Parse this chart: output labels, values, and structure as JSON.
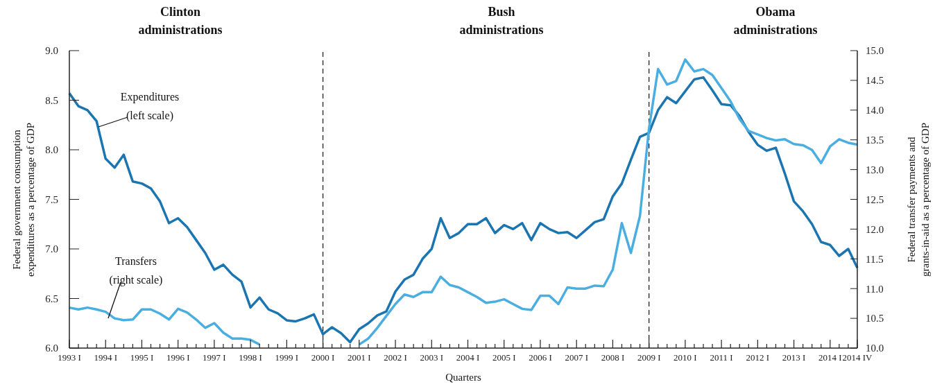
{
  "chart_data": {
    "type": "line",
    "xlabel": "Quarters",
    "ylabel": "Federal government consumption expenditures as a percentage of GDP",
    "y2label": "Federal transfer payments and grants-in-aid as a percentage of GDP",
    "annotations": [
      "Clinton administrations",
      "Bush administrations",
      "Obama administrations"
    ],
    "categories": [
      "1993 I",
      null,
      null,
      null,
      "1994 I",
      null,
      null,
      null,
      "1995 I",
      null,
      null,
      null,
      "1996 I",
      null,
      null,
      null,
      "1997 I",
      null,
      null,
      null,
      "1998 I",
      null,
      null,
      null,
      "1999 I",
      null,
      null,
      null,
      "2000 I",
      null,
      null,
      null,
      "2001 I",
      null,
      null,
      null,
      "2002 I",
      null,
      null,
      null,
      "2003 I",
      null,
      null,
      null,
      "2004 I",
      null,
      null,
      null,
      "2005 I",
      null,
      null,
      null,
      "2006 I",
      null,
      null,
      null,
      "2007 I",
      null,
      null,
      null,
      "2008 I",
      null,
      null,
      null,
      "2009 I",
      null,
      null,
      null,
      "2010 I",
      null,
      null,
      null,
      "2011 I",
      null,
      null,
      null,
      "2012 I",
      null,
      null,
      null,
      "2013 I",
      null,
      null,
      null,
      "2014 I",
      null,
      null,
      "2014 IV"
    ],
    "series": [
      {
        "name": "Expenditures (left scale)",
        "color": "#1b75b0",
        "values": [
          8.57,
          8.44,
          8.4,
          8.29,
          7.91,
          7.82,
          7.95,
          7.68,
          7.66,
          7.61,
          7.48,
          7.26,
          7.31,
          7.22,
          7.09,
          6.96,
          6.79,
          6.84,
          6.74,
          6.67,
          6.41,
          6.51,
          6.39,
          6.35,
          6.28,
          6.27,
          6.3,
          6.34,
          6.14,
          6.21,
          6.15,
          6.06,
          6.19,
          6.25,
          6.33,
          6.37,
          6.57,
          6.69,
          6.74,
          6.9,
          7.0,
          7.31,
          7.11,
          7.16,
          7.25,
          7.25,
          7.31,
          7.16,
          7.24,
          7.2,
          7.26,
          7.09,
          7.26,
          7.2,
          7.16,
          7.17,
          7.11,
          7.19,
          7.27,
          7.3,
          7.53,
          7.66,
          7.9,
          8.13,
          8.17,
          8.4,
          8.53,
          8.47,
          8.59,
          8.71,
          8.73,
          8.6,
          8.46,
          8.45,
          8.34,
          8.18,
          8.05,
          7.99,
          8.02,
          7.76,
          7.48,
          7.38,
          7.25,
          7.07,
          7.04,
          6.93,
          7.0,
          6.81
        ]
      },
      {
        "name": "Transfers (right scale)",
        "color": "#4aaee0",
        "axis": "y2",
        "values": [
          10.68,
          10.65,
          10.68,
          10.65,
          10.61,
          10.5,
          10.47,
          10.48,
          10.65,
          10.65,
          10.58,
          10.48,
          10.66,
          10.6,
          10.48,
          10.34,
          10.42,
          10.26,
          10.16,
          10.16,
          10.14,
          10.06,
          null,
          null,
          null,
          null,
          null,
          null,
          null,
          null,
          null,
          null,
          10.06,
          10.16,
          10.34,
          10.54,
          10.74,
          10.9,
          10.86,
          10.94,
          10.94,
          11.2,
          11.06,
          11.02,
          10.94,
          10.86,
          10.76,
          10.78,
          10.82,
          10.74,
          10.66,
          10.64,
          10.88,
          10.88,
          10.74,
          11.02,
          11.0,
          11.0,
          11.05,
          11.04,
          11.32,
          12.1,
          11.6,
          12.22,
          13.69,
          14.69,
          14.43,
          14.49,
          14.85,
          14.65,
          14.69,
          14.59,
          14.37,
          14.15,
          13.85,
          13.65,
          13.59,
          13.53,
          13.49,
          13.51,
          13.43,
          13.41,
          13.33,
          13.11,
          13.39,
          13.51,
          13.45,
          13.42
        ]
      }
    ],
    "ylim": [
      6,
      9
    ],
    "yticks": [
      {
        "value": 6,
        "label": "6.0"
      },
      {
        "value": 6.5,
        "label": "6.5"
      },
      {
        "value": 7,
        "label": "7.0"
      },
      {
        "value": 7.5,
        "label": "7.5"
      },
      {
        "value": 8,
        "label": "8.0"
      },
      {
        "value": 8.5,
        "label": "8.5"
      },
      {
        "value": 9,
        "label": "9.0"
      }
    ],
    "y2lim": [
      10,
      15
    ],
    "y2ticks": [
      {
        "value": 10,
        "label": "10.0"
      },
      {
        "value": 10.5,
        "label": "10.5"
      },
      {
        "value": 11,
        "label": "11.0"
      },
      {
        "value": 11.5,
        "label": "11.5"
      },
      {
        "value": 12,
        "label": "12.0"
      },
      {
        "value": 12.5,
        "label": "12.5"
      },
      {
        "value": 13,
        "label": "13.0"
      },
      {
        "value": 13.5,
        "label": "13.5"
      },
      {
        "value": 14,
        "label": "14.0"
      },
      {
        "value": 14.5,
        "label": "14.5"
      },
      {
        "value": 15,
        "label": "15.0"
      }
    ],
    "ref_lines": [
      {
        "axis": "x",
        "value": "2000 I",
        "color": "#222222",
        "line_style": "dashed"
      },
      {
        "axis": "x",
        "value": "2009 I",
        "color": "#222222",
        "line_style": "dashed"
      }
    ],
    "grid": false,
    "legend": false,
    "marker": "none",
    "line_style": "solid"
  }
}
